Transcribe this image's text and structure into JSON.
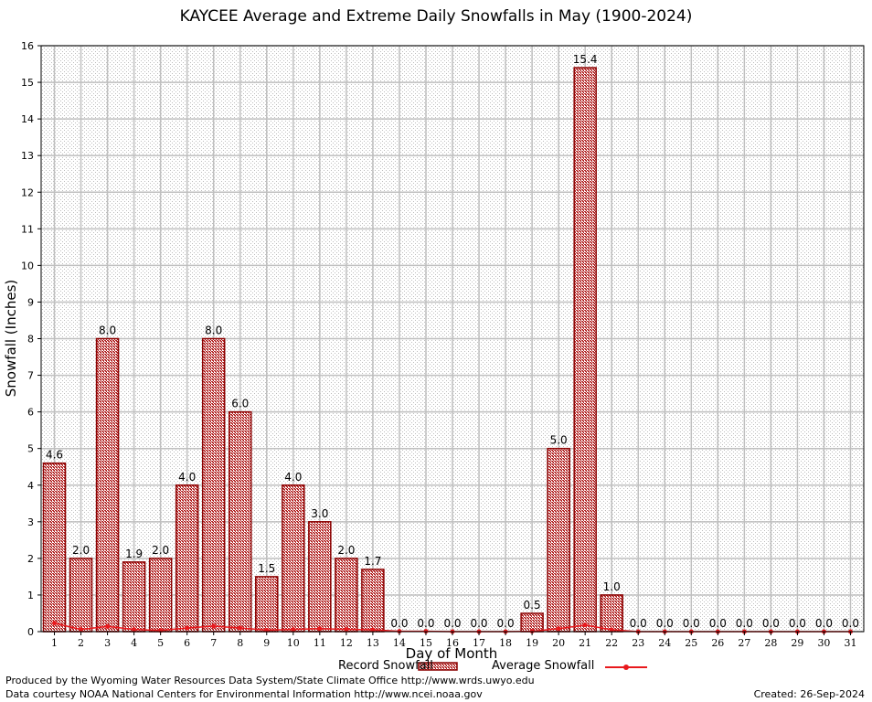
{
  "chart_data": {
    "type": "bar",
    "title": "KAYCEE Average and Extreme Daily Snowfalls in May (1900-2024)",
    "xlabel": "Day of Month",
    "ylabel": "Snowfall (Inches)",
    "ylim": [
      0,
      16
    ],
    "yticks": [
      "0",
      "1",
      "2",
      "3",
      "4",
      "5",
      "6",
      "7",
      "8",
      "9",
      "10",
      "11",
      "12",
      "13",
      "14",
      "15",
      "16"
    ],
    "categories": [
      "1",
      "2",
      "3",
      "4",
      "5",
      "6",
      "7",
      "8",
      "9",
      "10",
      "11",
      "12",
      "13",
      "14",
      "15",
      "16",
      "17",
      "18",
      "19",
      "20",
      "21",
      "22",
      "23",
      "24",
      "25",
      "26",
      "27",
      "28",
      "29",
      "30",
      "31"
    ],
    "grid": true,
    "legend_position": "bottom",
    "series": [
      {
        "name": "Record Snowfall",
        "type": "bar",
        "color": "#8b0000",
        "fill": "#d9a3a3",
        "values": [
          4.6,
          2.0,
          8.0,
          1.9,
          2.0,
          4.0,
          8.0,
          6.0,
          1.5,
          4.0,
          3.0,
          2.0,
          1.7,
          0.0,
          0.0,
          0.0,
          0.0,
          0.0,
          0.5,
          5.0,
          15.4,
          1.0,
          0.0,
          0.0,
          0.0,
          0.0,
          0.0,
          0.0,
          0.0,
          0.0,
          0.0
        ],
        "labels": [
          "4.6",
          "2.0",
          "8.0",
          "1.9",
          "2.0",
          "4.0",
          "8.0",
          "6.0",
          "1.5",
          "4.0",
          "3.0",
          "2.0",
          "1.7",
          "0.0",
          "0.0",
          "0.0",
          "0.0",
          "0.0",
          "0.5",
          "5.0",
          "15.4",
          "1.0",
          "0.0",
          "0.0",
          "0.0",
          "0.0",
          "0.0",
          "0.0",
          "0.0",
          "0.0",
          "0.0"
        ]
      },
      {
        "name": "Average Snowfall",
        "type": "line",
        "color": "#e8191d",
        "values": [
          0.23,
          0.06,
          0.14,
          0.06,
          0.03,
          0.1,
          0.15,
          0.1,
          0.04,
          0.06,
          0.08,
          0.06,
          0.05,
          0.01,
          0.01,
          0.0,
          0.0,
          0.0,
          0.01,
          0.08,
          0.18,
          0.05,
          0.0,
          0.0,
          0.0,
          0.0,
          0.0,
          0.0,
          0.0,
          0.0,
          0.0
        ]
      }
    ]
  },
  "footer": {
    "produced": "Produced by the Wyoming Water Resources Data System/State Climate Office http://www.wrds.uwyo.edu",
    "courtesy": "Data courtesy NOAA National Centers for Environmental Information http://www.ncei.noaa.gov",
    "created": "Created: 26-Sep-2024"
  }
}
